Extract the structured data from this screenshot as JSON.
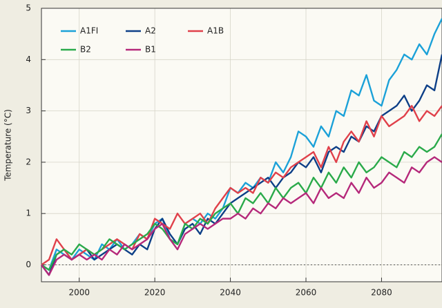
{
  "chart_data": {
    "type": "line",
    "y_label": "Temperature (°C)",
    "x": [
      1990,
      1992,
      1994,
      1996,
      1998,
      2000,
      2002,
      2004,
      2006,
      2008,
      2010,
      2012,
      2014,
      2016,
      2018,
      2020,
      2022,
      2024,
      2026,
      2028,
      2030,
      2032,
      2034,
      2036,
      2038,
      2040,
      2042,
      2044,
      2046,
      2048,
      2050,
      2052,
      2054,
      2056,
      2058,
      2060,
      2062,
      2064,
      2066,
      2068,
      2070,
      2072,
      2074,
      2076,
      2078,
      2080,
      2082,
      2084,
      2086,
      2088,
      2090,
      2092,
      2094,
      2096
    ],
    "series": [
      {
        "name": "A1FI",
        "color": "#1ba1d8",
        "values": [
          0.0,
          -0.1,
          0.3,
          0.2,
          0.1,
          0.3,
          0.2,
          0.1,
          0.4,
          0.3,
          0.5,
          0.3,
          0.4,
          0.6,
          0.5,
          0.8,
          0.9,
          0.5,
          0.4,
          0.8,
          0.9,
          0.8,
          1.0,
          0.9,
          1.1,
          1.5,
          1.4,
          1.6,
          1.5,
          1.7,
          1.6,
          2.0,
          1.8,
          2.1,
          2.6,
          2.5,
          2.3,
          2.7,
          2.5,
          3.0,
          2.9,
          3.4,
          3.3,
          3.7,
          3.2,
          3.1,
          3.6,
          3.8,
          4.1,
          4.0,
          4.3,
          4.1,
          4.5,
          4.8
        ]
      },
      {
        "name": "A2",
        "color": "#0d3f87",
        "values": [
          0.0,
          -0.2,
          0.2,
          0.3,
          0.1,
          0.2,
          0.3,
          0.1,
          0.2,
          0.3,
          0.4,
          0.3,
          0.2,
          0.4,
          0.3,
          0.7,
          0.9,
          0.6,
          0.4,
          0.7,
          0.8,
          0.6,
          0.9,
          0.8,
          1.0,
          1.2,
          1.3,
          1.4,
          1.5,
          1.6,
          1.7,
          1.5,
          1.7,
          1.8,
          2.0,
          1.9,
          2.1,
          1.8,
          2.2,
          2.3,
          2.2,
          2.5,
          2.4,
          2.7,
          2.6,
          2.9,
          3.0,
          3.1,
          3.3,
          3.0,
          3.2,
          3.5,
          3.4,
          4.1
        ]
      },
      {
        "name": "A1B",
        "color": "#e0404a",
        "values": [
          0.0,
          0.1,
          0.5,
          0.3,
          0.1,
          0.2,
          0.3,
          0.2,
          0.3,
          0.4,
          0.5,
          0.4,
          0.3,
          0.6,
          0.5,
          0.9,
          0.8,
          0.7,
          1.0,
          0.8,
          0.9,
          1.0,
          0.8,
          1.1,
          1.3,
          1.5,
          1.4,
          1.5,
          1.4,
          1.7,
          1.6,
          1.8,
          1.7,
          1.9,
          2.0,
          2.1,
          2.2,
          1.9,
          2.3,
          2.0,
          2.4,
          2.6,
          2.4,
          2.8,
          2.5,
          2.9,
          2.7,
          2.8,
          2.9,
          3.1,
          2.8,
          3.0,
          2.9,
          3.1
        ]
      },
      {
        "name": "B2",
        "color": "#2aaa4a",
        "values": [
          0.0,
          -0.1,
          0.2,
          0.3,
          0.2,
          0.4,
          0.3,
          0.2,
          0.3,
          0.5,
          0.4,
          0.3,
          0.4,
          0.5,
          0.6,
          0.8,
          0.7,
          0.5,
          0.4,
          0.8,
          0.7,
          0.9,
          0.8,
          1.0,
          1.1,
          1.2,
          1.0,
          1.3,
          1.2,
          1.4,
          1.2,
          1.5,
          1.3,
          1.5,
          1.6,
          1.4,
          1.7,
          1.5,
          1.8,
          1.6,
          1.9,
          1.7,
          2.0,
          1.8,
          1.9,
          2.1,
          2.0,
          1.9,
          2.2,
          2.1,
          2.3,
          2.2,
          2.3,
          2.55
        ]
      },
      {
        "name": "B1",
        "color": "#b5287a",
        "values": [
          0.0,
          -0.2,
          0.1,
          0.2,
          0.1,
          0.2,
          0.1,
          0.2,
          0.1,
          0.3,
          0.2,
          0.4,
          0.3,
          0.4,
          0.5,
          0.7,
          0.8,
          0.5,
          0.3,
          0.6,
          0.7,
          0.8,
          0.7,
          0.8,
          0.9,
          0.9,
          1.0,
          0.9,
          1.1,
          1.0,
          1.2,
          1.1,
          1.3,
          1.2,
          1.3,
          1.4,
          1.2,
          1.5,
          1.3,
          1.4,
          1.3,
          1.6,
          1.4,
          1.7,
          1.5,
          1.6,
          1.8,
          1.7,
          1.6,
          1.9,
          1.8,
          2.0,
          2.1,
          2.0
        ]
      }
    ],
    "xlim": [
      1990,
      2096
    ],
    "xticks": [
      2000,
      2020,
      2040,
      2060,
      2080
    ],
    "ylim": [
      -0.33,
      5
    ],
    "yticks": [
      0,
      1,
      2,
      3,
      4,
      5
    ],
    "grid": true,
    "legend": "upper left"
  }
}
